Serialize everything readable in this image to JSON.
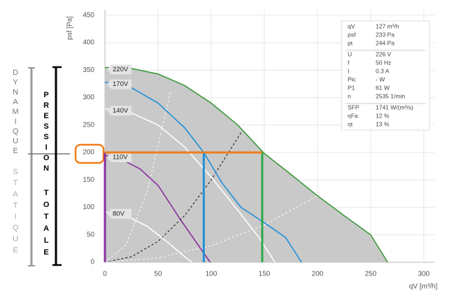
{
  "chart_data": {
    "type": "line",
    "y_label": "psf [Pa]",
    "x_label": "qV [m³/h]",
    "xlim": [
      0,
      310
    ],
    "ylim": [
      0,
      460
    ],
    "xticks": [
      0,
      50,
      100,
      150,
      200,
      250,
      300
    ],
    "yticks": [
      0,
      50,
      100,
      150,
      200,
      250,
      300,
      350,
      400,
      450
    ],
    "grid": true,
    "fill_color": "#c9c9c9",
    "series": [
      {
        "name": "220V",
        "color": "#3a9a3a",
        "x": [
          0,
          25,
          50,
          75,
          100,
          125,
          150,
          175,
          200,
          225,
          250,
          266
        ],
        "values": [
          355,
          353,
          343,
          322,
          290,
          250,
          198,
          160,
          121,
          85,
          50,
          0
        ]
      },
      {
        "name": "170V",
        "color": "#1e90d8",
        "x": [
          0,
          25,
          50,
          75,
          93,
          110,
          128,
          150,
          170,
          185
        ],
        "values": [
          328,
          318,
          290,
          245,
          200,
          145,
          100,
          72,
          45,
          0
        ]
      },
      {
        "name": "140V",
        "color": "#ffffff",
        "x": [
          0,
          25,
          50,
          75,
          100,
          125,
          145,
          160
        ],
        "values": [
          280,
          272,
          250,
          210,
          155,
          95,
          45,
          0
        ]
      },
      {
        "name": "110V",
        "color": "#8a2e9e",
        "x": [
          0,
          15,
          33,
          50,
          72,
          90,
          99
        ],
        "values": [
          195,
          188,
          170,
          140,
          75,
          25,
          0
        ]
      },
      {
        "name": "80V",
        "color": "#ffffff",
        "x": [
          0,
          20,
          40,
          60,
          75,
          82
        ],
        "values": [
          92,
          85,
          65,
          35,
          10,
          0
        ]
      }
    ],
    "system_curves": [
      {
        "color": "#333333",
        "x": [
          0,
          25,
          50,
          75,
          100,
          128
        ],
        "values": [
          0,
          10,
          38,
          85,
          150,
          236
        ]
      },
      {
        "color": "#f2f2f2",
        "x": [
          0,
          20,
          40,
          62
        ],
        "values": [
          0,
          32,
          130,
          312
        ]
      },
      {
        "color": "#f2f2f2",
        "x": [
          0,
          50,
          100,
          150,
          200
        ],
        "values": [
          0,
          8,
          30,
          68,
          121
        ]
      }
    ],
    "operating_lines": {
      "pressure": 200,
      "pressure_color": "#f07d1a",
      "flows": [
        0,
        93,
        148
      ],
      "flow_colors": [
        "#8a2e9e",
        "#1e90d8",
        "#2ea84a"
      ]
    },
    "info_box": [
      {
        "label": "qV",
        "value": "127 m³/h"
      },
      {
        "label": "psf",
        "value": "233 Pa"
      },
      {
        "label": "pt",
        "value": "244 Pa"
      },
      {
        "label": "U",
        "value": "226 V"
      },
      {
        "label": "f",
        "value": "50 Hz"
      },
      {
        "label": "I",
        "value": "0.3 A"
      },
      {
        "label": "Pic",
        "value": "- W"
      },
      {
        "label": "P1",
        "value": "61 W"
      },
      {
        "label": "n",
        "value": "2535 1/min"
      },
      {
        "label": "SFP",
        "value": "1741 W/(m³/s)"
      },
      {
        "label": "ηFa",
        "value": "12 %"
      },
      {
        "label": "ηt",
        "value": "13 %"
      }
    ]
  },
  "annotations": {
    "dynamic": "DYNAMIQUE",
    "static": "STATIQUE",
    "total_1": "PRESSION",
    "total_2": "TOTALE"
  }
}
